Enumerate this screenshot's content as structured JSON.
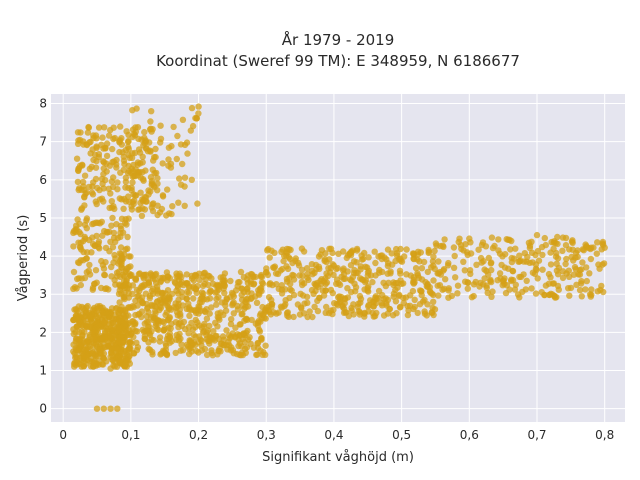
{
  "chart_data": {
    "type": "scatter",
    "title_line1": "År 1979 - 2019",
    "title_line2": "Koordinat (Sweref 99 TM): E 348959, N 6186677",
    "xlabel": "Signifikant våghöjd (m)",
    "ylabel": "Vågperiod (s)",
    "xlim": [
      -0.018,
      0.83
    ],
    "ylim": [
      -0.35,
      8.25
    ],
    "x_ticks": [
      0,
      0.1,
      0.2,
      0.3,
      0.4,
      0.5,
      0.6,
      0.7,
      0.8
    ],
    "x_tick_labels": [
      "0",
      "0,1",
      "0,2",
      "0,3",
      "0,4",
      "0,5",
      "0,6",
      "0,7",
      "0,8"
    ],
    "y_ticks": [
      0,
      1,
      2,
      3,
      4,
      5,
      6,
      7,
      8
    ],
    "y_tick_labels": [
      "0",
      "1",
      "2",
      "3",
      "4",
      "5",
      "6",
      "7",
      "8"
    ],
    "grid": true,
    "colors": {
      "marker": "#d4a017",
      "plot_bg": "#e5e5ef",
      "grid": "#ffffff"
    },
    "clusters": [
      {
        "x_range": [
          0.015,
          0.1
        ],
        "y_range": [
          1.1,
          2.7
        ],
        "count": 420
      },
      {
        "x_range": [
          0.08,
          0.3
        ],
        "y_range": [
          1.4,
          3.6
        ],
        "count": 620
      },
      {
        "x_range": [
          0.3,
          0.55
        ],
        "y_range": [
          2.4,
          4.2
        ],
        "count": 420
      },
      {
        "x_range": [
          0.55,
          0.8
        ],
        "y_range": [
          2.9,
          4.5
        ],
        "count": 260
      },
      {
        "x_range": [
          0.015,
          0.1
        ],
        "y_range": [
          3.1,
          5.0
        ],
        "count": 150
      },
      {
        "x_range": [
          0.02,
          0.14
        ],
        "y_range": [
          5.2,
          7.4
        ],
        "count": 220
      },
      {
        "x_range": [
          0.1,
          0.2
        ],
        "y_range": [
          5.0,
          7.9
        ],
        "count": 70
      }
    ],
    "points": [
      {
        "x": 0.05,
        "y": 0.0
      },
      {
        "x": 0.06,
        "y": 0.0
      },
      {
        "x": 0.07,
        "y": 0.0
      },
      {
        "x": 0.08,
        "y": 0.0
      },
      {
        "x": 0.2,
        "y": 7.92
      },
      {
        "x": 0.13,
        "y": 7.8
      },
      {
        "x": 0.8,
        "y": 4.22
      },
      {
        "x": 0.78,
        "y": 4.22
      },
      {
        "x": 0.76,
        "y": 4.15
      },
      {
        "x": 0.7,
        "y": 4.55
      },
      {
        "x": 0.73,
        "y": 4.5
      },
      {
        "x": 0.02,
        "y": 4.7
      },
      {
        "x": 0.07,
        "y": 1.05
      },
      {
        "x": 0.16,
        "y": 5.1
      },
      {
        "x": 0.17,
        "y": 5.4
      },
      {
        "x": 0.19,
        "y": 6.0
      }
    ]
  }
}
